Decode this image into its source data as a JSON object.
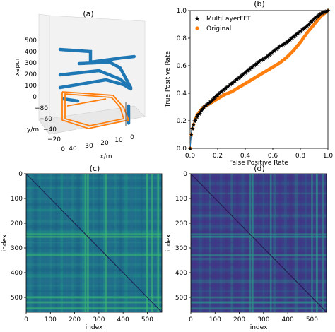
{
  "panels": {
    "a": {
      "label": "(a)",
      "zlabel": "index",
      "ylabel": "y/m",
      "xlabel": "x/m",
      "z_ticks": [
        "500",
        "400",
        "300",
        "200",
        "100",
        "0"
      ],
      "y_ticks": [
        "−80",
        "−60",
        "−40",
        "−20",
        "0"
      ],
      "x_ticks": [
        "40",
        "30",
        "20",
        "10",
        "0"
      ],
      "series_colors": {
        "multilayer": "#1f77b4",
        "original": "#ff7f0e"
      }
    },
    "b": {
      "label": "(b)"
    },
    "c": {
      "label": "(c)",
      "colormap": "viridis-bright"
    },
    "d": {
      "label": "(d)",
      "colormap": "viridis-dark"
    }
  },
  "chart_data": [
    {
      "type": "line",
      "panel": "b",
      "xlabel": "False Positive Rate",
      "ylabel": "True Positive Rate",
      "xlim": [
        0.0,
        1.0
      ],
      "ylim": [
        0.0,
        1.0
      ],
      "xticks": [
        "0.0",
        "0.2",
        "0.4",
        "0.6",
        "0.8",
        "1.0"
      ],
      "yticks": [
        "0.0",
        "0.2",
        "0.4",
        "0.6",
        "0.8",
        "1.0"
      ],
      "grid": false,
      "legend": "top-left",
      "series": [
        {
          "name": "MultiLayerFFT",
          "color": "#1f77b4",
          "marker": "star",
          "x": [
            0.0,
            0.01,
            0.03,
            0.05,
            0.08,
            0.1,
            0.15,
            0.2,
            0.25,
            0.3,
            0.35,
            0.4,
            0.45,
            0.5,
            0.55,
            0.6,
            0.65,
            0.7,
            0.75,
            0.8,
            0.85,
            0.9,
            0.95,
            1.0
          ],
          "y": [
            0.0,
            0.12,
            0.19,
            0.23,
            0.27,
            0.3,
            0.34,
            0.39,
            0.43,
            0.47,
            0.51,
            0.55,
            0.59,
            0.63,
            0.66,
            0.7,
            0.74,
            0.77,
            0.81,
            0.85,
            0.89,
            0.94,
            0.98,
            1.0
          ]
        },
        {
          "name": "Original",
          "color": "#ff7f0e",
          "marker": "circle",
          "x": [
            0.0,
            0.01,
            0.03,
            0.05,
            0.08,
            0.1,
            0.15,
            0.2,
            0.25,
            0.3,
            0.35,
            0.4,
            0.45,
            0.5,
            0.55,
            0.6,
            0.65,
            0.7,
            0.75,
            0.8,
            0.85,
            0.9,
            0.95,
            1.0
          ],
          "y": [
            0.0,
            0.12,
            0.19,
            0.24,
            0.28,
            0.3,
            0.33,
            0.36,
            0.39,
            0.41,
            0.44,
            0.47,
            0.5,
            0.53,
            0.56,
            0.59,
            0.62,
            0.66,
            0.71,
            0.77,
            0.84,
            0.9,
            0.96,
            1.0
          ]
        }
      ]
    },
    {
      "type": "heatmap",
      "panel": "c",
      "xlabel": "index",
      "ylabel": "index",
      "xlim": [
        0,
        560
      ],
      "ylim": [
        560,
        0
      ],
      "xticks": [
        "0",
        "100",
        "200",
        "300",
        "400",
        "500"
      ],
      "yticks": [
        "0",
        "100",
        "200",
        "300",
        "400",
        "500"
      ],
      "bright_bands": [
        245,
        255,
        330,
        500,
        520,
        545
      ]
    },
    {
      "type": "heatmap",
      "panel": "d",
      "xlabel": "index",
      "ylabel": "index",
      "xlim": [
        0,
        560
      ],
      "ylim": [
        560,
        0
      ],
      "xticks": [
        "0",
        "100",
        "200",
        "300",
        "400",
        "500"
      ],
      "yticks": [
        "0",
        "100",
        "200",
        "300",
        "400",
        "500"
      ],
      "bright_bands": [
        245,
        255,
        330,
        500,
        520,
        545
      ]
    }
  ]
}
